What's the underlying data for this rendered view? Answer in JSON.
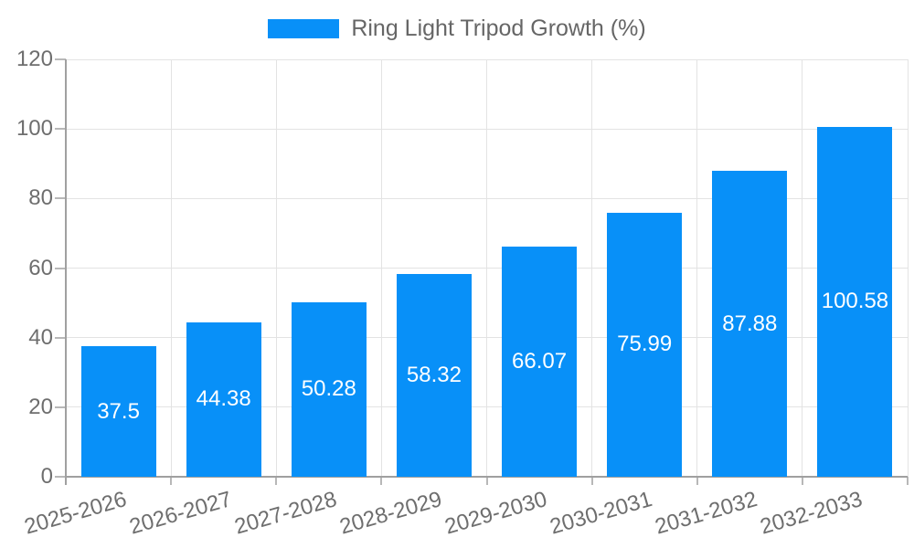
{
  "legend": {
    "label": "Ring Light Tripod Growth (%)"
  },
  "chart_data": {
    "type": "bar",
    "title": "Ring Light Tripod Growth (%)",
    "categories": [
      "2025-2026",
      "2026-2027",
      "2027-2028",
      "2028-2029",
      "2029-2030",
      "2030-2031",
      "2031-2032",
      "2032-2033"
    ],
    "values": [
      37.5,
      44.38,
      50.28,
      58.32,
      66.07,
      75.99,
      87.88,
      100.58
    ],
    "bar_value_labels": [
      "37.5",
      "44.38",
      "50.28",
      "58.32",
      "66.07",
      "75.99",
      "87.88",
      "100.58"
    ],
    "xlabel": "",
    "ylabel": "",
    "ylim": [
      0,
      120
    ],
    "yticks": [
      0,
      20,
      40,
      60,
      80,
      100,
      120
    ],
    "grid": true,
    "legend_position": "top",
    "colors": {
      "bar": "#0890f8",
      "bar_label": "#ffffff",
      "grid": "#e3e3e3",
      "axis": "#a0a0a0",
      "tick": "#b8b8b8",
      "tick_label": "#6e6e6e",
      "legend_text": "#666666"
    }
  }
}
